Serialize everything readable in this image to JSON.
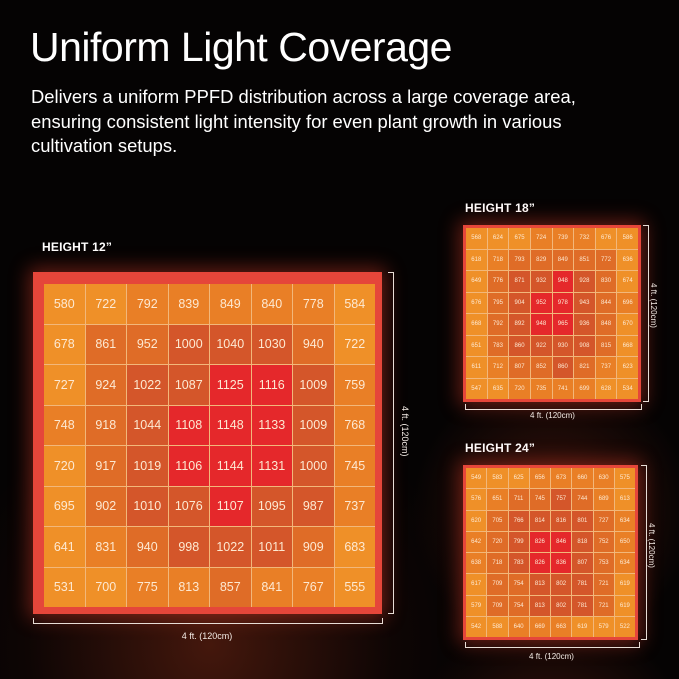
{
  "header": {
    "title": "Uniform Light Coverage",
    "subtitle": "Delivers a uniform PPFD distribution across a large coverage area, ensuring consistent light intensity for even plant growth in various cultivation setups."
  },
  "colors": {
    "background": "#050303",
    "frame": "#e5463a",
    "grid_lines": "#f2b77a",
    "low": "#ef9028",
    "mid_low": "#e97f26",
    "mid": "#df6c27",
    "mid_high": "#d4562a",
    "high": "#e5282b"
  },
  "panels": [
    {
      "label": "HEIGHT 12”",
      "width_dim": "4 ft. (120cm)",
      "depth_dim": "4 ft. (120cm)"
    },
    {
      "label": "HEIGHT 18”",
      "width_dim": "4 ft. (120cm)",
      "depth_dim": "4 ft. (120cm)"
    },
    {
      "label": "HEIGHT 24”",
      "width_dim": "4 ft. (120cm)",
      "depth_dim": "4 ft. (120cm)"
    }
  ],
  "chart_data": [
    {
      "type": "heatmap",
      "title": "HEIGHT 12”",
      "xlabel": "4 ft. (120cm)",
      "ylabel": "4 ft. (120cm)",
      "values": [
        [
          580,
          722,
          792,
          839,
          849,
          840,
          778,
          584
        ],
        [
          678,
          861,
          952,
          1000,
          1040,
          1030,
          940,
          722
        ],
        [
          727,
          924,
          1022,
          1087,
          1125,
          1116,
          1009,
          759
        ],
        [
          748,
          918,
          1044,
          1108,
          1148,
          1133,
          1009,
          768
        ],
        [
          720,
          917,
          1019,
          1106,
          1144,
          1131,
          1000,
          745
        ],
        [
          695,
          902,
          1010,
          1076,
          1107,
          1095,
          987,
          737
        ],
        [
          641,
          831,
          940,
          998,
          1022,
          1011,
          909,
          683
        ],
        [
          531,
          700,
          775,
          813,
          857,
          841,
          767,
          555
        ]
      ]
    },
    {
      "type": "heatmap",
      "title": "HEIGHT 18”",
      "xlabel": "4 ft. (120cm)",
      "ylabel": "4 ft. (120cm)",
      "values": [
        [
          568,
          624,
          675,
          724,
          739,
          732,
          676,
          586
        ],
        [
          618,
          718,
          793,
          829,
          849,
          851,
          772,
          636
        ],
        [
          649,
          776,
          871,
          932,
          948,
          928,
          830,
          674
        ],
        [
          676,
          795,
          904,
          952,
          978,
          943,
          844,
          696
        ],
        [
          668,
          792,
          892,
          948,
          965,
          936,
          848,
          670
        ],
        [
          651,
          783,
          860,
          922,
          930,
          908,
          815,
          668
        ],
        [
          611,
          712,
          807,
          852,
          860,
          821,
          737,
          623
        ],
        [
          547,
          635,
          720,
          735,
          741,
          699,
          628,
          534
        ]
      ]
    },
    {
      "type": "heatmap",
      "title": "HEIGHT 24”",
      "xlabel": "4 ft. (120cm)",
      "ylabel": "4 ft. (120cm)",
      "values": [
        [
          549,
          583,
          625,
          656,
          673,
          660,
          630,
          575
        ],
        [
          576,
          651,
          711,
          745,
          757,
          744,
          689,
          613
        ],
        [
          620,
          705,
          766,
          814,
          816,
          801,
          727,
          634
        ],
        [
          642,
          720,
          799,
          826,
          846,
          818,
          752,
          650
        ],
        [
          638,
          718,
          783,
          826,
          836,
          807,
          753,
          634
        ],
        [
          617,
          709,
          754,
          813,
          802,
          781,
          721,
          619
        ],
        [
          579,
          709,
          754,
          813,
          802,
          781,
          721,
          619
        ],
        [
          542,
          588,
          640,
          669,
          663,
          619,
          579,
          522
        ]
      ]
    }
  ]
}
